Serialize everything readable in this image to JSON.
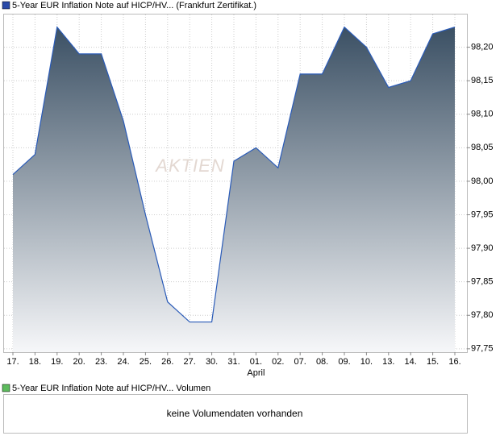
{
  "chart_data": {
    "type": "line",
    "legend": "5-Year EUR Inflation Note auf HICP/HV... (Frankfurt Zertifikat.)",
    "watermark": "AKTIEN",
    "categories": [
      "17.",
      "18.",
      "19.",
      "20.",
      "23.",
      "24.",
      "25.",
      "26.",
      "27.",
      "30.",
      "31.",
      "01.",
      "02.",
      "07.",
      "08.",
      "09.",
      "10.",
      "13.",
      "14.",
      "15.",
      "16."
    ],
    "month_label": "April",
    "month_label_index": 11,
    "series": [
      {
        "name": "5-Year EUR Inflation Note auf HICP/HV... (Frankfurt Zertifikat.)",
        "color": "#2a5bb8",
        "values": [
          98.01,
          98.04,
          98.23,
          98.19,
          98.19,
          98.09,
          97.95,
          97.82,
          97.79,
          97.79,
          98.03,
          98.05,
          98.02,
          98.16,
          98.16,
          98.23,
          98.2,
          98.14,
          98.15,
          98.22,
          98.23
        ]
      }
    ],
    "ylim": [
      97.745,
      98.25
    ],
    "yticks": [
      {
        "value": 97.75,
        "label": "97,75"
      },
      {
        "value": 97.8,
        "label": "97,80"
      },
      {
        "value": 97.85,
        "label": "97,85"
      },
      {
        "value": 97.9,
        "label": "97,90"
      },
      {
        "value": 97.95,
        "label": "97,95"
      },
      {
        "value": 98.0,
        "label": "98,00"
      },
      {
        "value": 98.05,
        "label": "98,05"
      },
      {
        "value": 98.1,
        "label": "98,10"
      },
      {
        "value": 98.15,
        "label": "98,15"
      },
      {
        "value": 98.2,
        "label": "98,20"
      }
    ],
    "grid": true
  },
  "volume_panel": {
    "legend": "5-Year EUR Inflation Note auf HICP/HV... Volumen",
    "message": "keine Volumendaten vorhanden"
  }
}
